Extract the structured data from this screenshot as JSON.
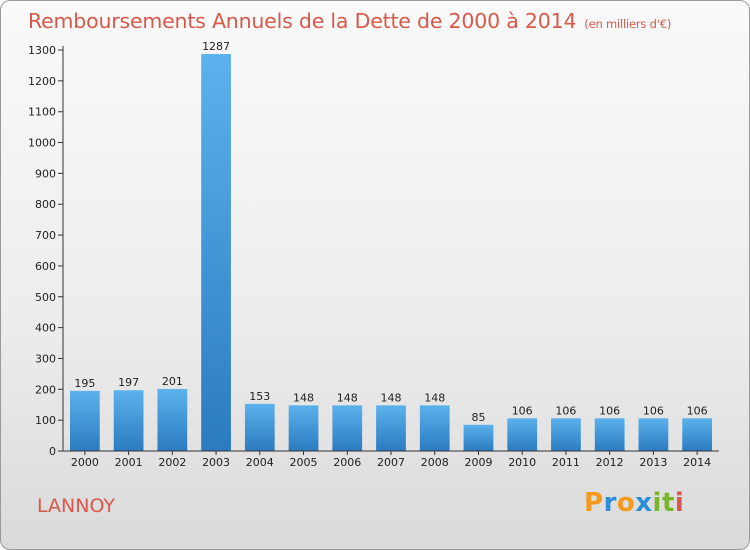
{
  "header": {
    "title": "Remboursements Annuels de la Dette de 2000 à 2014",
    "unit": "(en milliers d'€)"
  },
  "footer": {
    "place": "LANNOY",
    "logo_letters": [
      "P",
      "r",
      "o",
      "x",
      "i",
      "t",
      "i"
    ],
    "logo_colors": [
      "#f39a1c",
      "#2a8fd8",
      "#f39a1c",
      "#2a8fd8",
      "#7ab62c",
      "#7ab62c",
      "#d8584a"
    ]
  },
  "chart_data": {
    "type": "bar",
    "categories": [
      "2000",
      "2001",
      "2002",
      "2003",
      "2004",
      "2005",
      "2006",
      "2007",
      "2008",
      "2009",
      "2010",
      "2011",
      "2012",
      "2013",
      "2014"
    ],
    "values": [
      195,
      197,
      201,
      1287,
      153,
      148,
      148,
      148,
      148,
      85,
      106,
      106,
      106,
      106,
      106
    ],
    "title": "Remboursements Annuels de la Dette de 2000 à 2014",
    "ylim": [
      0,
      1300
    ],
    "yticks": [
      0,
      100,
      200,
      300,
      400,
      500,
      600,
      700,
      800,
      900,
      1000,
      1100,
      1200,
      1300
    ],
    "grid": false,
    "colors": {
      "bar_top": "#5cb2ec",
      "bar_bottom": "#2a7bc0"
    }
  }
}
